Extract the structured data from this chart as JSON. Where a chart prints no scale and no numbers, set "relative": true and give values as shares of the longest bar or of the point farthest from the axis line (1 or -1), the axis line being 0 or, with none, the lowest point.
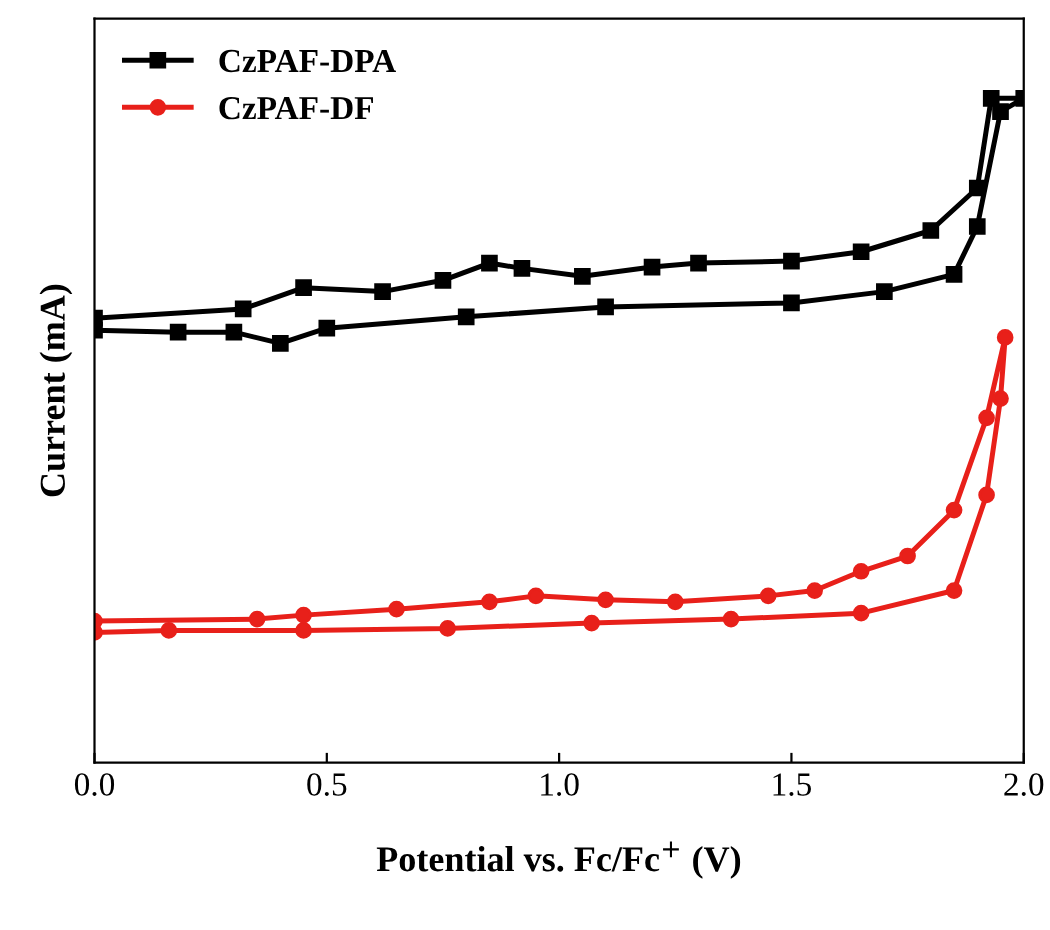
{
  "chart_data": {
    "type": "line",
    "relative": true,
    "xlabel": "Potential vs. Fc/Fc$^{+}$ (V)",
    "ylabel": "Current (mA)",
    "xlim": [
      0,
      2
    ],
    "xticks": [
      {
        "value": 0,
        "label": "0.0"
      },
      {
        "value": 0.5,
        "label": "0.5"
      },
      {
        "value": 1,
        "label": "1.0"
      },
      {
        "value": 1.5,
        "label": "1.5"
      },
      {
        "value": 2,
        "label": "2.0"
      }
    ],
    "legend": "top left",
    "grid": false,
    "tick_labels": "x",
    "series": [
      {
        "name": "CzPAF-DPA",
        "color": "#000000",
        "marker": "square",
        "x": [
          0,
          0.18,
          0.3,
          0.4,
          0.5,
          0.8,
          1.1,
          1.5,
          1.7,
          1.85,
          1.9,
          1.95,
          2.0,
          1.93,
          1.9,
          1.8,
          1.65,
          1.5,
          1.3,
          1.2,
          1.05,
          0.92,
          0.85,
          0.75,
          0.62,
          0.45,
          0.32,
          0
        ],
        "values": [
          0.651,
          0.648,
          0.648,
          0.631,
          0.654,
          0.671,
          0.686,
          0.692,
          0.709,
          0.735,
          0.807,
          0.98,
          1.0,
          1.0,
          0.865,
          0.801,
          0.769,
          0.755,
          0.752,
          0.746,
          0.732,
          0.744,
          0.752,
          0.726,
          0.709,
          0.715,
          0.683,
          0.669
        ]
      },
      {
        "name": "CzPAF-DF",
        "color": "#e8201a",
        "marker": "circle",
        "x": [
          0,
          0.16,
          0.45,
          0.76,
          1.07,
          1.37,
          1.65,
          1.85,
          1.92,
          1.95,
          1.96,
          1.92,
          1.85,
          1.75,
          1.65,
          1.55,
          1.45,
          1.25,
          1.1,
          0.95,
          0.85,
          0.65,
          0.45,
          0.35,
          0
        ],
        "values": [
          0.196,
          0.199,
          0.199,
          0.202,
          0.21,
          0.216,
          0.225,
          0.259,
          0.403,
          0.548,
          0.64,
          0.519,
          0.38,
          0.311,
          0.288,
          0.259,
          0.251,
          0.242,
          0.245,
          0.251,
          0.242,
          0.231,
          0.222,
          0.216,
          0.213
        ]
      }
    ]
  }
}
